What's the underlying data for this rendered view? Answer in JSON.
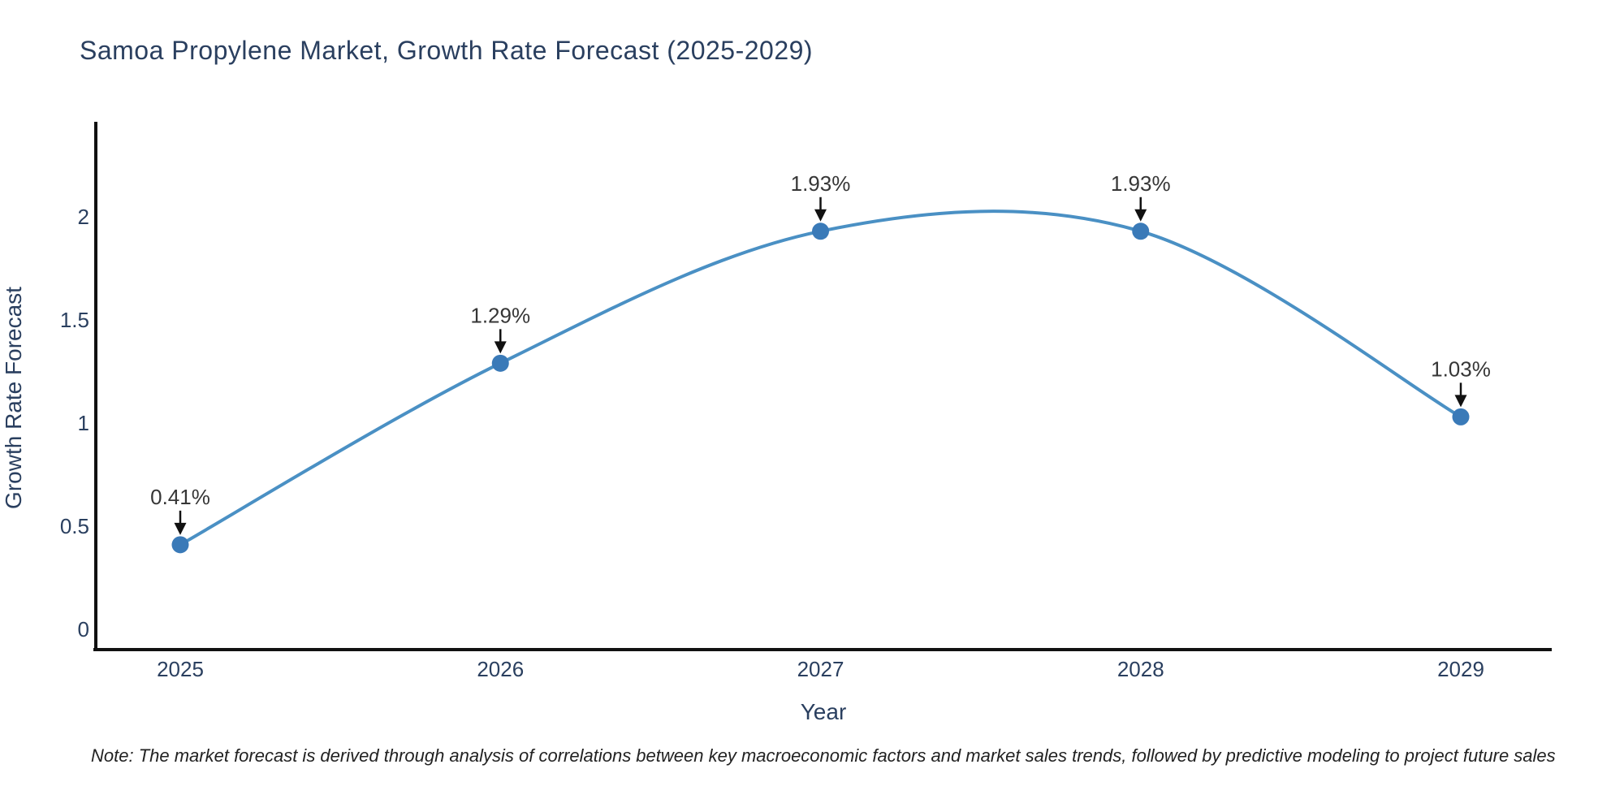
{
  "page": {
    "background": "#ffffff"
  },
  "chart_data": {
    "type": "line",
    "title": "Samoa Propylene Market, Growth Rate Forecast (2025-2029)",
    "xlabel": "Year",
    "ylabel": "Growth Rate Forecast",
    "categories": [
      "2025",
      "2026",
      "2027",
      "2028",
      "2029"
    ],
    "values": [
      0.41,
      1.29,
      1.93,
      1.93,
      1.03
    ],
    "point_labels": [
      "0.41%",
      "1.29%",
      "1.93%",
      "1.93%",
      "1.03%"
    ],
    "yticks": [
      0,
      0.5,
      1,
      1.5,
      2
    ],
    "ytick_labels": [
      "0",
      "0.5",
      "1",
      "1.5",
      "2"
    ],
    "ylim": [
      -0.1,
      2.46
    ],
    "curve": "spline",
    "grid": false,
    "legend": "none",
    "line_color": "#4a90c4",
    "marker_color": "#3a7ab8",
    "axis_color": "#111111",
    "tick_text_color": "#2a3f5f",
    "annotation_text_color": "#363636",
    "arrow_color": "#111111"
  },
  "note": {
    "text": "Note: The market forecast is derived through analysis of correlations between key macroeconomic factors and market sales trends, followed by predictive modeling to project future sales"
  }
}
